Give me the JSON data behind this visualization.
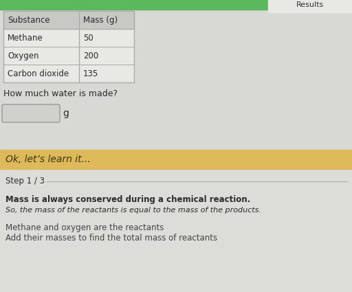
{
  "bg_color": "#d8d8d5",
  "top_bar_color": "#5cb85c",
  "results_text": "Results",
  "table_header_bg": "#c8c8c4",
  "table_row_bg": "#e8e8e4",
  "table_border_color": "#aaaaaa",
  "table_col1_header": "Substance",
  "table_col2_header": "Mass (g)",
  "table_rows": [
    [
      "Methane",
      "50"
    ],
    [
      "Oxygen",
      "200"
    ],
    [
      "Carbon dioxide",
      "135"
    ]
  ],
  "question": "How much water is made?",
  "input_box_color": "#d0d0cc",
  "input_unit": "g",
  "banner_color": "#ddb95a",
  "banner_text": "Ok, let’s learn it...",
  "banner_text_color": "#3a3510",
  "step_label": "Step 1 / 3",
  "step_line_color": "#aaaaaa",
  "bold_sentence": "Mass is always conserved during a chemical reaction.",
  "italic_sentence": "So, the mass of the reactants is equal to the mass of the products.",
  "line3": "Methane and oxygen are the reactants",
  "line4": "Add their masses to find the total mass of reactants",
  "text_color": "#2a2a2a",
  "light_text_color": "#444444",
  "bottom_bg": "#dcdcd8"
}
